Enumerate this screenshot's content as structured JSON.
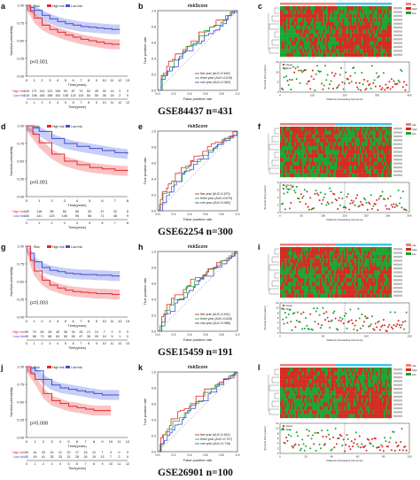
{
  "figure": {
    "panel_letters": [
      "a",
      "b",
      "c",
      "d",
      "e",
      "f",
      "g",
      "h",
      "i",
      "j",
      "k",
      "l"
    ],
    "roc_title": "riskScore",
    "roc_xlabel": "False positive rate",
    "roc_ylabel": "True positive rate",
    "km_ylabel": "Survival probability",
    "km_xlabel": "Time(years)",
    "risk_legend_title": "Risk",
    "risk_high": "High risk",
    "risk_low": "Low risk",
    "risk_table_high": "High risk",
    "risk_table_low": "Low risk",
    "dot_ylabel": "Survival time (years)",
    "dot_xlabel": "Patients (increasing risk socre)",
    "dot_legend": [
      "Dead",
      "Alive"
    ],
    "heat_legend": [
      "risk",
      "high",
      "low"
    ],
    "colors": {
      "high": "#e8262d",
      "low": "#3d4fdc",
      "heat_red": "#d42a1f",
      "heat_green": "#18a532",
      "blue_band": "#3fc6e6"
    }
  },
  "rows": [
    {
      "dataset_title": "GSE84437 n=431",
      "km": {
        "pvalue": "p<0.001",
        "ticks": [
          "0",
          "1",
          "2",
          "3",
          "4",
          "5",
          "6",
          "7",
          "8",
          "9",
          "10",
          "11",
          "12",
          "13"
        ],
        "high_counts": [
          "216",
          "171",
          "141",
          "123",
          "106",
          "94",
          "87",
          "74",
          "62",
          "45",
          "32",
          "14",
          "2",
          "0"
        ],
        "low_counts": [
          "215",
          "196",
          "180",
          "158",
          "153",
          "138",
          "124",
          "103",
          "84",
          "55",
          "35",
          "16",
          "2",
          "0"
        ],
        "high_line": [
          [
            0,
            1
          ],
          [
            0.5,
            0.92
          ],
          [
            1,
            0.82
          ],
          [
            2,
            0.72
          ],
          [
            3,
            0.66
          ],
          [
            4,
            0.62
          ],
          [
            5,
            0.58
          ],
          [
            6,
            0.55
          ],
          [
            7,
            0.52
          ],
          [
            8,
            0.5
          ],
          [
            9,
            0.48
          ],
          [
            10,
            0.46
          ],
          [
            11,
            0.45
          ],
          [
            12,
            0.45
          ]
        ],
        "low_line": [
          [
            0,
            1
          ],
          [
            0.5,
            0.97
          ],
          [
            1,
            0.93
          ],
          [
            2,
            0.86
          ],
          [
            3,
            0.81
          ],
          [
            4,
            0.77
          ],
          [
            5,
            0.74
          ],
          [
            6,
            0.72
          ],
          [
            7,
            0.7
          ],
          [
            8,
            0.69
          ],
          [
            9,
            0.68
          ],
          [
            10,
            0.67
          ],
          [
            11,
            0.66
          ],
          [
            12,
            0.66
          ]
        ]
      },
      "roc": {
        "legend": [
          "five year (AUC=0.640)",
          "three year (AUC=0.619)",
          "one year (AUC=0.563)"
        ]
      },
      "c_yticks": [
        "0",
        "5",
        "10",
        "15"
      ],
      "c_xticks": [
        "0",
        "100",
        "200",
        "300",
        "400"
      ]
    },
    {
      "dataset_title": "GSE62254 n=300",
      "km": {
        "pvalue": "p<0.001",
        "ticks": [
          "0",
          "1",
          "2",
          "3",
          "4",
          "5",
          "6",
          "7",
          "8"
        ],
        "high_counts": [
          "150",
          "118",
          "85",
          "66",
          "58",
          "53",
          "47",
          "33",
          "6"
        ],
        "low_counts": [
          "150",
          "141",
          "120",
          "108",
          "95",
          "86",
          "71",
          "48",
          "9"
        ],
        "high_line": [
          [
            0,
            1
          ],
          [
            0.5,
            0.88
          ],
          [
            1,
            0.76
          ],
          [
            2,
            0.6
          ],
          [
            3,
            0.5
          ],
          [
            4,
            0.45
          ],
          [
            5,
            0.41
          ],
          [
            6,
            0.39
          ],
          [
            7,
            0.37
          ],
          [
            8,
            0.36
          ]
        ],
        "low_line": [
          [
            0,
            1
          ],
          [
            0.5,
            0.97
          ],
          [
            1,
            0.92
          ],
          [
            2,
            0.82
          ],
          [
            3,
            0.75
          ],
          [
            4,
            0.71
          ],
          [
            5,
            0.68
          ],
          [
            6,
            0.65
          ],
          [
            7,
            0.62
          ],
          [
            8,
            0.6
          ]
        ]
      },
      "roc": {
        "legend": [
          "five year (AUC=0.670)",
          "three year (AUC=0.679)",
          "one year (AUC=0.660)"
        ]
      },
      "c_yticks": [
        "0",
        "2",
        "4",
        "6",
        "8"
      ],
      "c_xticks": [
        "0",
        "50",
        "100",
        "150",
        "200",
        "250",
        "300"
      ]
    },
    {
      "dataset_title": "GSE15459 n=191",
      "km": {
        "pvalue": "p=0.003",
        "ticks": [
          "0",
          "1",
          "2",
          "3",
          "4",
          "5",
          "6",
          "7",
          "8",
          "9",
          "10",
          "11",
          "12",
          "13"
        ],
        "high_counts": [
          "96",
          "70",
          "50",
          "45",
          "40",
          "36",
          "34",
          "28",
          "21",
          "14",
          "7",
          "2",
          "0",
          "0"
        ],
        "low_counts": [
          "95",
          "86",
          "73",
          "68",
          "64",
          "59",
          "55",
          "47",
          "36",
          "26",
          "14",
          "5",
          "1",
          "0"
        ],
        "high_line": [
          [
            0,
            1
          ],
          [
            0.5,
            0.8
          ],
          [
            1,
            0.65
          ],
          [
            2,
            0.52
          ],
          [
            3,
            0.45
          ],
          [
            4,
            0.41
          ],
          [
            5,
            0.38
          ],
          [
            6,
            0.36
          ],
          [
            7,
            0.35
          ],
          [
            8,
            0.34
          ],
          [
            9,
            0.33
          ],
          [
            10,
            0.33
          ],
          [
            11,
            0.32
          ],
          [
            12,
            0.32
          ]
        ],
        "low_line": [
          [
            0,
            1
          ],
          [
            0.5,
            0.9
          ],
          [
            1,
            0.78
          ],
          [
            2,
            0.7
          ],
          [
            3,
            0.66
          ],
          [
            4,
            0.64
          ],
          [
            5,
            0.62
          ],
          [
            6,
            0.61
          ],
          [
            7,
            0.6
          ],
          [
            8,
            0.6
          ],
          [
            9,
            0.59
          ],
          [
            10,
            0.59
          ],
          [
            11,
            0.58
          ],
          [
            12,
            0.58
          ]
        ]
      },
      "roc": {
        "legend": [
          "five year (AUC=0.641)",
          "three year (AUC=0.625)",
          "one year (AUC=0.588)"
        ]
      },
      "c_yticks": [
        "0",
        "2",
        "4",
        "6",
        "8",
        "10",
        "12"
      ],
      "c_xticks": [
        "0",
        "50",
        "100",
        "150"
      ]
    },
    {
      "dataset_title": "GSE26901 n=100",
      "km": {
        "pvalue": "p=0.008",
        "ticks": [
          "0",
          "1",
          "2",
          "3",
          "4",
          "5",
          "6",
          "7",
          "8",
          "9",
          "10",
          "11",
          "12"
        ],
        "high_counts": [
          "50",
          "44",
          "33",
          "24",
          "21",
          "20",
          "17",
          "15",
          "12",
          "7",
          "3",
          "0",
          "0"
        ],
        "low_counts": [
          "50",
          "49",
          "41",
          "35",
          "33",
          "31",
          "28",
          "26",
          "19",
          "13",
          "7",
          "2",
          "0"
        ],
        "high_line": [
          [
            0,
            1
          ],
          [
            0.5,
            0.9
          ],
          [
            1,
            0.82
          ],
          [
            2,
            0.62
          ],
          [
            3,
            0.52
          ],
          [
            4,
            0.48
          ],
          [
            5,
            0.44
          ],
          [
            6,
            0.42
          ],
          [
            7,
            0.4
          ],
          [
            8,
            0.38
          ],
          [
            9,
            0.38
          ],
          [
            10,
            0.38
          ]
        ],
        "low_line": [
          [
            0,
            1
          ],
          [
            0.5,
            0.98
          ],
          [
            1,
            0.94
          ],
          [
            2,
            0.82
          ],
          [
            3,
            0.74
          ],
          [
            4,
            0.7
          ],
          [
            5,
            0.68
          ],
          [
            6,
            0.66
          ],
          [
            7,
            0.64
          ],
          [
            8,
            0.62
          ],
          [
            9,
            0.6
          ],
          [
            10,
            0.6
          ],
          [
            11,
            0.6
          ]
        ]
      },
      "roc": {
        "legend": [
          "five year (AUC=0.610)",
          "three year (AUC=0.707)",
          "one year (AUC=0.716)"
        ]
      },
      "c_yticks": [
        "0",
        "2",
        "4",
        "6",
        "8",
        "10",
        "12"
      ],
      "c_xticks": [
        "0",
        "20",
        "40",
        "60",
        "80",
        "100"
      ]
    }
  ]
}
